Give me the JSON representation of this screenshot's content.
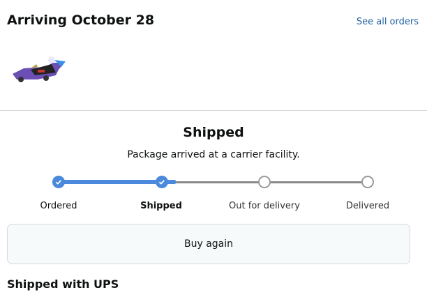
{
  "header": {
    "title": "Arriving October 28",
    "see_all_orders": "See all orders"
  },
  "product": {
    "icon": "toy-car-image"
  },
  "shipment": {
    "status": "Shipped",
    "substatus": "Package arrived at a carrier facility.",
    "steps": [
      {
        "label": "Ordered",
        "done": true
      },
      {
        "label": "Shipped",
        "done": true,
        "current": true
      },
      {
        "label": "Out for delivery",
        "done": false
      },
      {
        "label": "Delivered",
        "done": false
      }
    ],
    "progress_color": "#4a89dc"
  },
  "buy_again": "Buy again",
  "carrier": "Shipped with UPS"
}
